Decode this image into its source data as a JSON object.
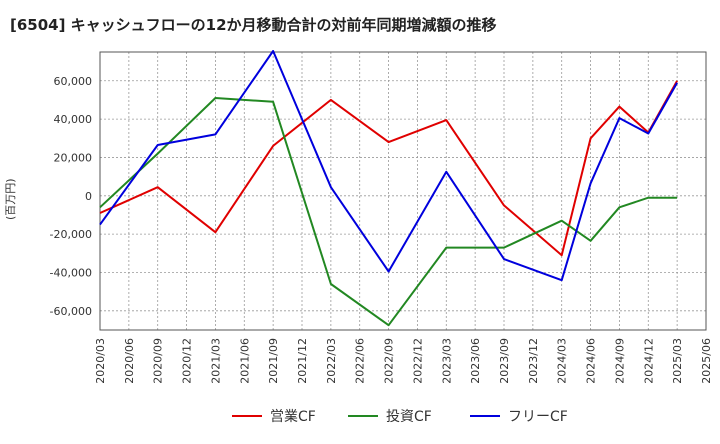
{
  "chart_data": {
    "type": "line",
    "title": "[6504]  キャッシュフローの12か月移動合計の対前年同期増減額の推移",
    "ylabel": "(百万円)",
    "xlabel": "",
    "ylim": [
      -70000,
      75000
    ],
    "yticks": [
      -60000,
      -40000,
      -20000,
      0,
      20000,
      40000,
      60000
    ],
    "ytick_labels": [
      "-60,000",
      "-40,000",
      "-20,000",
      "0",
      "20,000",
      "40,000",
      "60,000"
    ],
    "x_ticks": [
      "2020/03",
      "2020/06",
      "2020/09",
      "2020/12",
      "2021/03",
      "2021/06",
      "2021/09",
      "2021/12",
      "2022/03",
      "2022/06",
      "2022/09",
      "2022/12",
      "2023/03",
      "2023/06",
      "2023/09",
      "2023/12",
      "2024/03",
      "2024/06",
      "2024/09",
      "2024/12",
      "2025/03",
      "2025/06"
    ],
    "grid": true,
    "legend_position": "bottom",
    "series": [
      {
        "name": "営業CF",
        "color": "#e00000",
        "points": [
          [
            "2020/03",
            -9000
          ],
          [
            "2020/09",
            4500
          ],
          [
            "2021/03",
            -19000
          ],
          [
            "2021/09",
            26000
          ],
          [
            "2022/03",
            50000
          ],
          [
            "2022/09",
            28000
          ],
          [
            "2023/03",
            39500
          ],
          [
            "2023/09",
            -5000
          ],
          [
            "2024/03",
            -31000
          ],
          [
            "2024/06",
            30000
          ],
          [
            "2024/09",
            46500
          ],
          [
            "2024/12",
            33000
          ],
          [
            "2025/03",
            60000
          ]
        ]
      },
      {
        "name": "投資CF",
        "color": "#228822",
        "points": [
          [
            "2020/03",
            -6000
          ],
          [
            "2020/09",
            22000
          ],
          [
            "2021/03",
            51000
          ],
          [
            "2021/09",
            49000
          ],
          [
            "2022/03",
            -46000
          ],
          [
            "2022/09",
            -67500
          ],
          [
            "2023/03",
            -27000
          ],
          [
            "2023/09",
            -27000
          ],
          [
            "2024/03",
            -13000
          ],
          [
            "2024/06",
            -23500
          ],
          [
            "2024/09",
            -6000
          ],
          [
            "2024/12",
            -1000
          ],
          [
            "2025/03",
            -1000
          ]
        ]
      },
      {
        "name": "フリーCF",
        "color": "#0000dd",
        "points": [
          [
            "2020/03",
            -15000
          ],
          [
            "2020/09",
            26500
          ],
          [
            "2021/03",
            32000
          ],
          [
            "2021/09",
            75500
          ],
          [
            "2022/03",
            4500
          ],
          [
            "2022/09",
            -39500
          ],
          [
            "2023/03",
            12500
          ],
          [
            "2023/09",
            -33000
          ],
          [
            "2024/03",
            -44000
          ],
          [
            "2024/06",
            6500
          ],
          [
            "2024/09",
            40500
          ],
          [
            "2024/12",
            32500
          ],
          [
            "2025/03",
            59000
          ]
        ]
      }
    ]
  }
}
